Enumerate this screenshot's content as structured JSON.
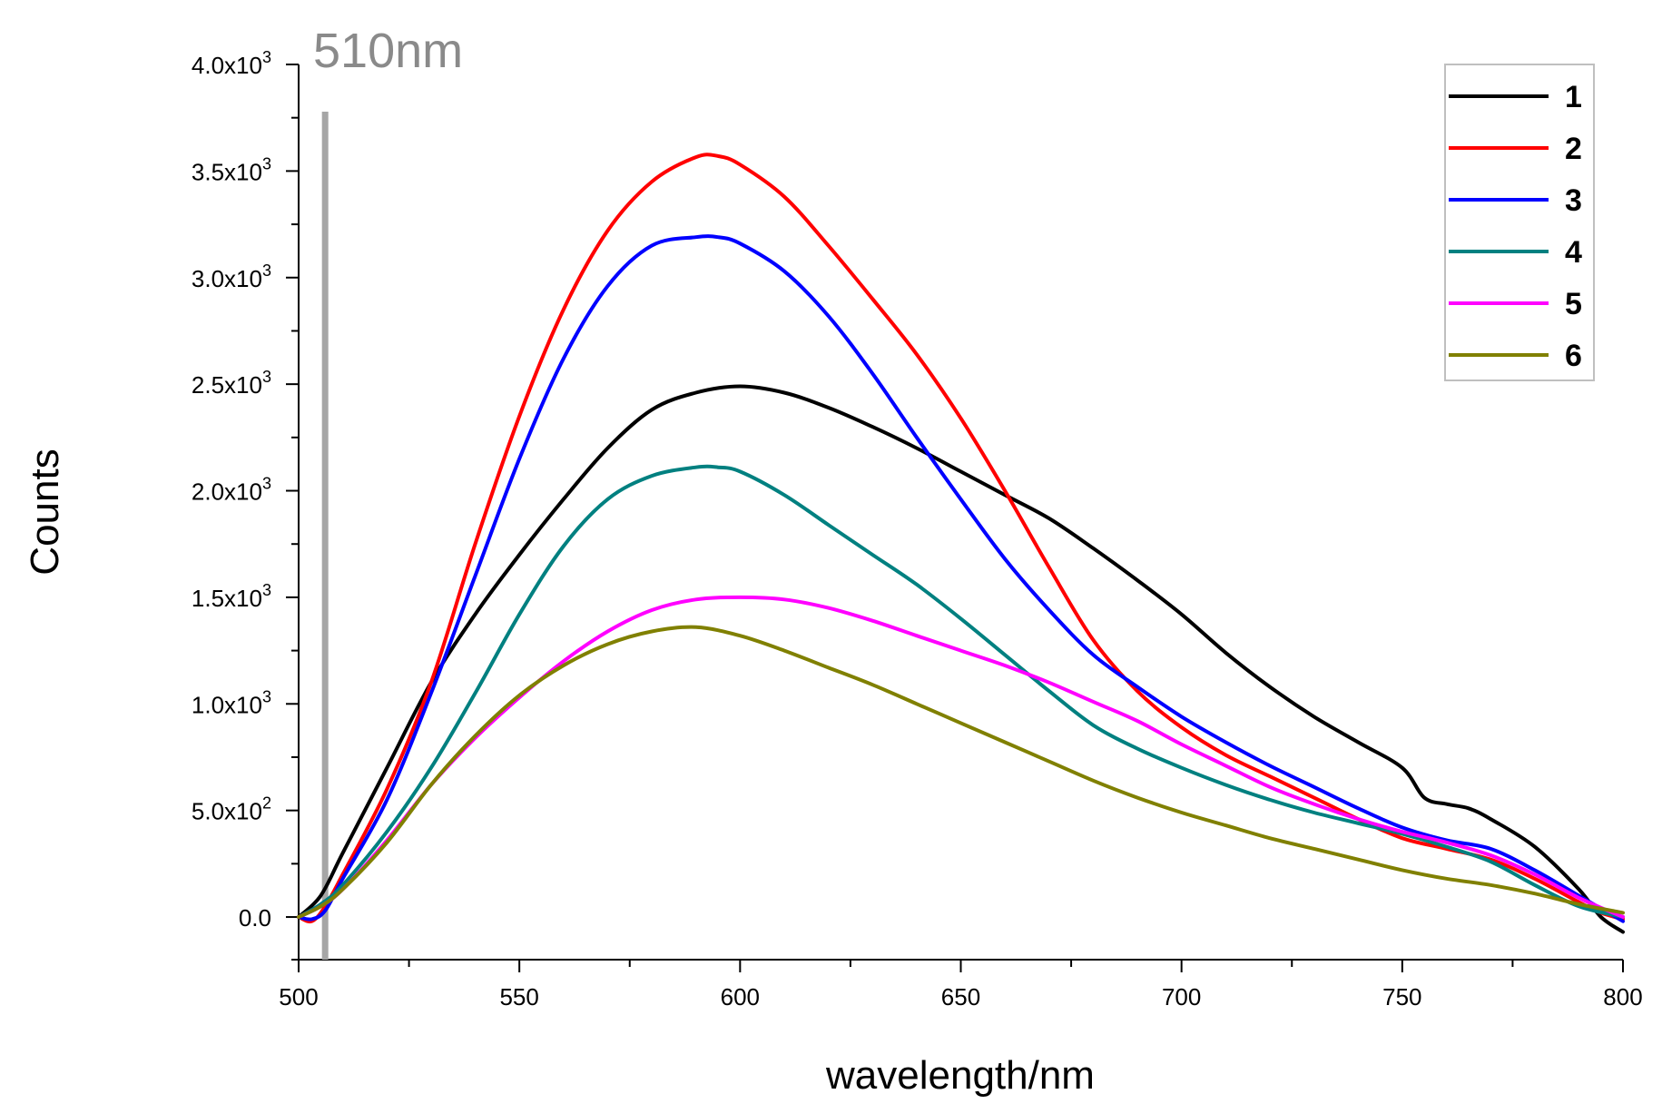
{
  "chart_data": {
    "type": "line",
    "title": "",
    "xlabel": "wavelength/nm",
    "ylabel": "Counts",
    "xlim": [
      500,
      800
    ],
    "ylim": [
      -200,
      4000
    ],
    "x_ticks": [
      500,
      550,
      600,
      650,
      700,
      750,
      800
    ],
    "y_ticks": [
      {
        "value": 0,
        "label": "0.0"
      },
      {
        "value": 500,
        "label": "5.0x10",
        "exp": "2"
      },
      {
        "value": 1000,
        "label": "1.0x10",
        "exp": "3"
      },
      {
        "value": 1500,
        "label": "1.5x10",
        "exp": "3"
      },
      {
        "value": 2000,
        "label": "2.0x10",
        "exp": "3"
      },
      {
        "value": 2500,
        "label": "2.5x10",
        "exp": "3"
      },
      {
        "value": 3000,
        "label": "3.0x10",
        "exp": "3"
      },
      {
        "value": 3500,
        "label": "3.5x10",
        "exp": "3"
      },
      {
        "value": 4000,
        "label": "4.0x10",
        "exp": "3"
      }
    ],
    "grid": false,
    "legend_position": "top-right",
    "annotation": {
      "label": "510nm",
      "x": 506,
      "color": "#a6a6a6"
    },
    "series": [
      {
        "name": "1",
        "color": "#000000",
        "x": [
          500,
          505,
          510,
          520,
          530,
          540,
          550,
          560,
          570,
          580,
          590,
          600,
          610,
          620,
          630,
          640,
          650,
          660,
          670,
          680,
          690,
          700,
          710,
          720,
          730,
          740,
          750,
          755,
          760,
          765,
          770,
          780,
          790,
          795,
          800
        ],
        "y": [
          0,
          100,
          300,
          700,
          1100,
          1420,
          1700,
          1960,
          2200,
          2380,
          2460,
          2490,
          2460,
          2390,
          2300,
          2200,
          2090,
          1980,
          1870,
          1730,
          1580,
          1420,
          1240,
          1080,
          940,
          820,
          700,
          560,
          530,
          510,
          460,
          330,
          130,
          0,
          -70
        ]
      },
      {
        "name": "2",
        "color": "#ff0000",
        "x": [
          500,
          503,
          506,
          510,
          520,
          530,
          540,
          550,
          560,
          570,
          580,
          590,
          595,
          600,
          610,
          620,
          630,
          640,
          650,
          660,
          670,
          680,
          690,
          700,
          710,
          720,
          730,
          740,
          750,
          760,
          770,
          780,
          790,
          795,
          800
        ],
        "y": [
          0,
          -20,
          50,
          200,
          600,
          1100,
          1750,
          2350,
          2850,
          3220,
          3450,
          3565,
          3570,
          3530,
          3380,
          3150,
          2900,
          2640,
          2340,
          2000,
          1640,
          1300,
          1060,
          890,
          760,
          660,
          560,
          460,
          370,
          320,
          270,
          180,
          70,
          20,
          -10
        ]
      },
      {
        "name": "3",
        "color": "#0000ff",
        "x": [
          500,
          503,
          506,
          510,
          520,
          530,
          540,
          550,
          560,
          570,
          580,
          590,
          595,
          600,
          610,
          620,
          630,
          640,
          650,
          660,
          670,
          680,
          690,
          700,
          710,
          720,
          730,
          740,
          750,
          760,
          770,
          780,
          790,
          795,
          800
        ],
        "y": [
          0,
          -10,
          30,
          180,
          550,
          1050,
          1600,
          2150,
          2620,
          2960,
          3150,
          3190,
          3190,
          3160,
          3030,
          2820,
          2550,
          2250,
          1960,
          1680,
          1440,
          1230,
          1080,
          940,
          820,
          710,
          610,
          510,
          420,
          360,
          320,
          220,
          100,
          40,
          -20
        ]
      },
      {
        "name": "4",
        "color": "#008080",
        "x": [
          500,
          505,
          510,
          520,
          530,
          540,
          550,
          560,
          570,
          580,
          590,
          595,
          600,
          610,
          620,
          630,
          640,
          650,
          660,
          670,
          680,
          690,
          700,
          710,
          720,
          730,
          740,
          750,
          760,
          770,
          780,
          790,
          800
        ],
        "y": [
          0,
          60,
          150,
          400,
          700,
          1050,
          1420,
          1740,
          1960,
          2070,
          2110,
          2110,
          2090,
          1980,
          1840,
          1700,
          1560,
          1400,
          1230,
          1060,
          900,
          790,
          700,
          620,
          550,
          490,
          440,
          390,
          330,
          260,
          150,
          50,
          0
        ]
      },
      {
        "name": "5",
        "color": "#ff00ff",
        "x": [
          500,
          505,
          510,
          520,
          530,
          540,
          550,
          560,
          570,
          580,
          590,
          600,
          610,
          620,
          630,
          640,
          650,
          660,
          670,
          680,
          690,
          700,
          710,
          720,
          730,
          740,
          750,
          760,
          770,
          780,
          790,
          800
        ],
        "y": [
          0,
          50,
          130,
          360,
          620,
          840,
          1030,
          1200,
          1340,
          1440,
          1490,
          1500,
          1490,
          1450,
          1390,
          1320,
          1250,
          1180,
          1100,
          1010,
          920,
          810,
          710,
          610,
          530,
          460,
          400,
          350,
          290,
          200,
          90,
          0
        ]
      },
      {
        "name": "6",
        "color": "#808000",
        "x": [
          500,
          505,
          510,
          520,
          530,
          540,
          550,
          560,
          570,
          580,
          590,
          600,
          610,
          620,
          630,
          640,
          650,
          660,
          670,
          680,
          690,
          700,
          710,
          720,
          730,
          740,
          750,
          760,
          770,
          780,
          790,
          800
        ],
        "y": [
          0,
          50,
          130,
          350,
          620,
          850,
          1040,
          1180,
          1280,
          1340,
          1360,
          1320,
          1250,
          1170,
          1090,
          1000,
          910,
          820,
          730,
          640,
          560,
          490,
          430,
          370,
          320,
          270,
          220,
          180,
          150,
          110,
          60,
          20
        ]
      }
    ]
  }
}
